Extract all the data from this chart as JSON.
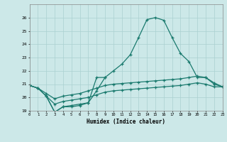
{
  "xlabel": "Humidex (Indice chaleur)",
  "background_color": "#cce8e8",
  "grid_color": "#aad0d0",
  "line_color": "#1a7a6e",
  "x_min": 0,
  "x_max": 23,
  "y_min": 19,
  "y_max": 27,
  "yticks": [
    19,
    20,
    21,
    22,
    23,
    24,
    25,
    26
  ],
  "series_main_x": [
    0,
    1,
    2,
    3,
    4,
    5,
    6,
    7,
    8,
    9,
    10,
    11,
    12,
    13,
    14,
    15,
    16,
    17,
    18,
    19,
    20,
    21,
    22,
    23
  ],
  "series_main_y": [
    20.9,
    20.7,
    20.1,
    18.9,
    19.3,
    19.4,
    19.5,
    19.6,
    20.5,
    21.5,
    22.0,
    22.5,
    23.2,
    24.5,
    25.85,
    26.0,
    25.8,
    24.5,
    23.3,
    22.7,
    21.5,
    21.5,
    21.0,
    20.8
  ],
  "series_upper_x": [
    0,
    1,
    2,
    3,
    4,
    5,
    6,
    7,
    8,
    9,
    10,
    11,
    12,
    13,
    14,
    15,
    16,
    17,
    18,
    19,
    20,
    21,
    22,
    23
  ],
  "series_upper_y": [
    20.9,
    20.7,
    20.3,
    19.9,
    20.1,
    20.2,
    20.3,
    20.5,
    20.7,
    20.9,
    21.0,
    21.05,
    21.1,
    21.15,
    21.2,
    21.25,
    21.3,
    21.35,
    21.4,
    21.5,
    21.6,
    21.5,
    21.1,
    20.8
  ],
  "series_lower_x": [
    0,
    1,
    2,
    3,
    4,
    5,
    6,
    7,
    8,
    9,
    10,
    11,
    12,
    13,
    14,
    15,
    16,
    17,
    18,
    19,
    20,
    21,
    22,
    23
  ],
  "series_lower_y": [
    20.9,
    20.7,
    20.1,
    19.5,
    19.7,
    19.8,
    19.9,
    20.0,
    20.2,
    20.4,
    20.5,
    20.55,
    20.6,
    20.65,
    20.7,
    20.75,
    20.8,
    20.85,
    20.9,
    21.0,
    21.1,
    21.0,
    20.8,
    20.8
  ],
  "series_short_x": [
    2,
    3,
    4,
    5,
    6,
    7,
    8,
    9
  ],
  "series_short_y": [
    20.1,
    18.9,
    19.3,
    19.3,
    19.4,
    19.6,
    21.5,
    21.5
  ]
}
